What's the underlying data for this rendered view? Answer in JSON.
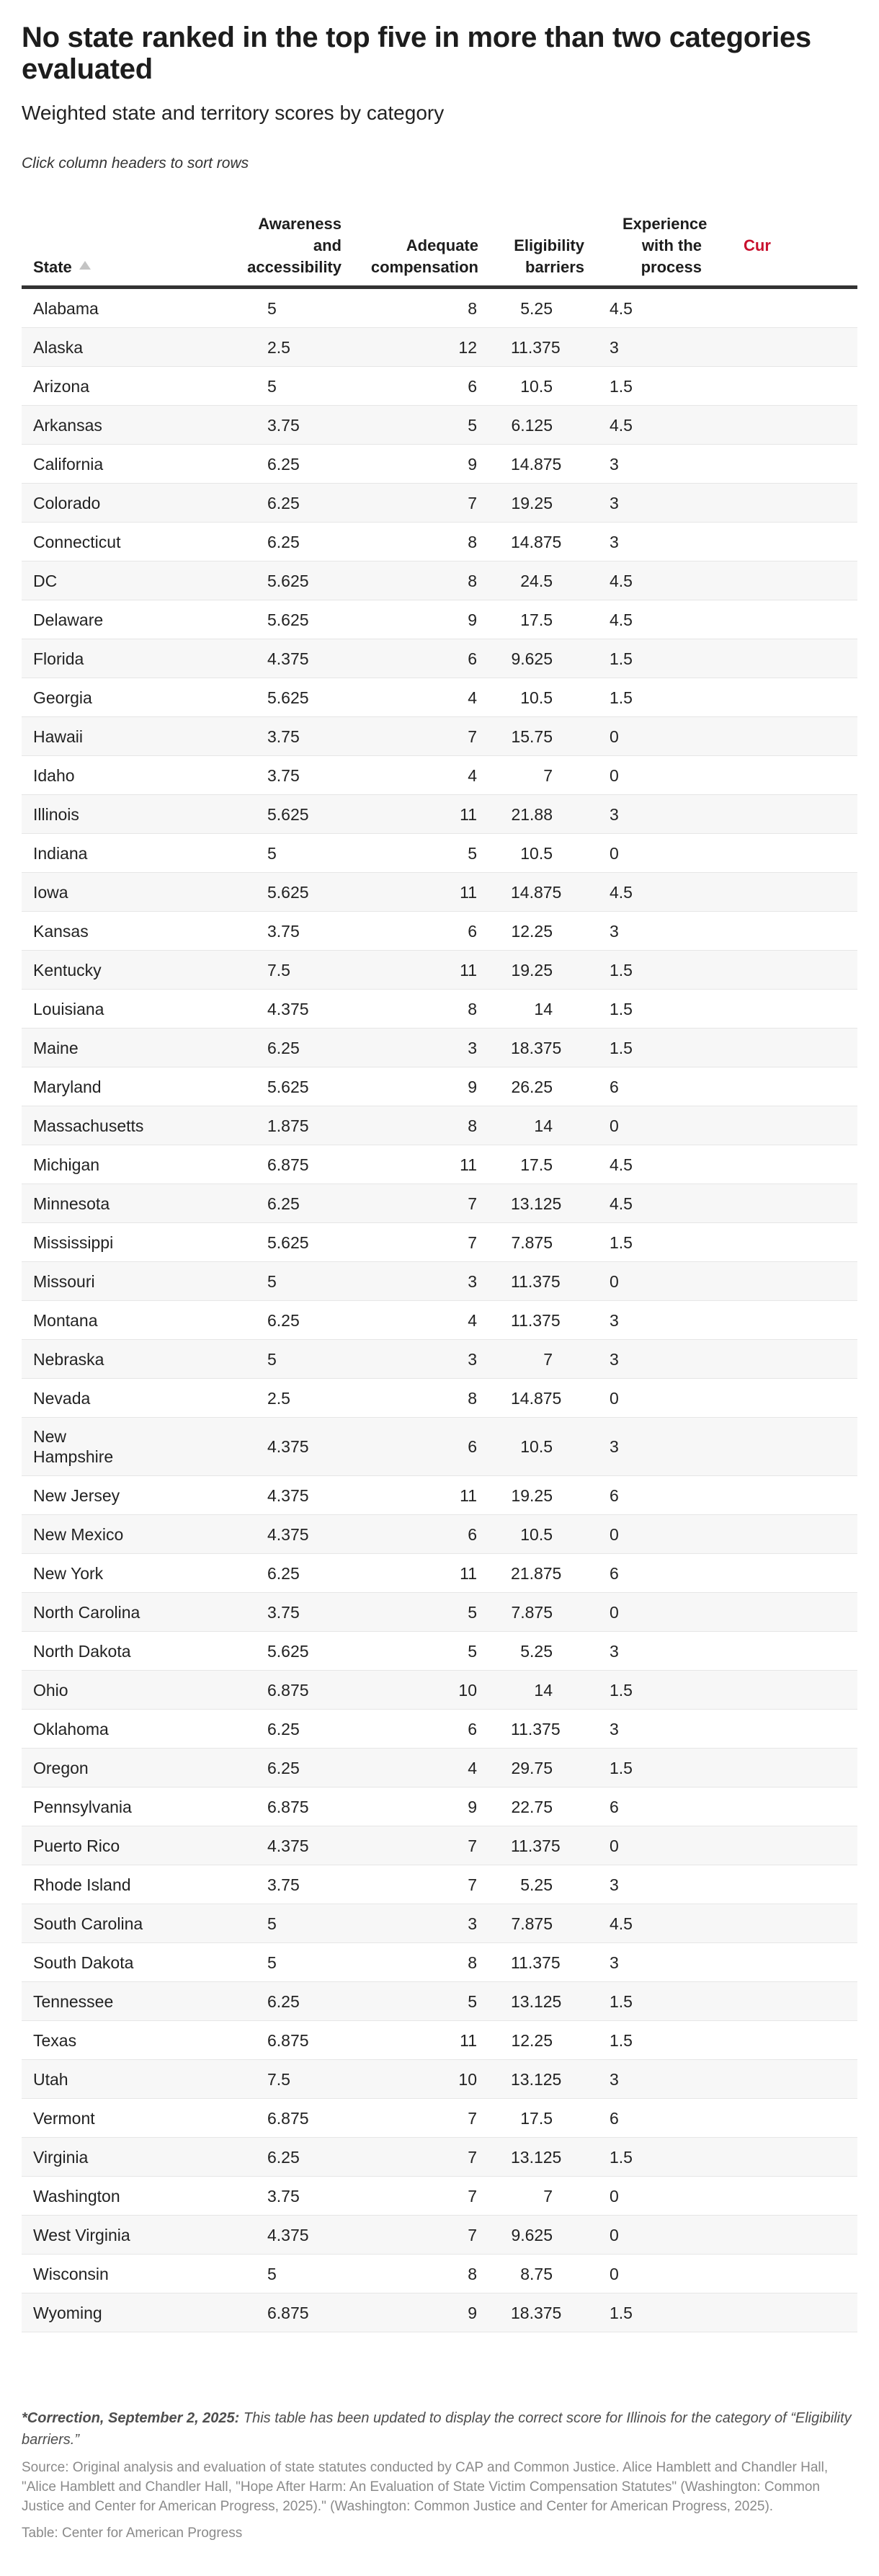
{
  "header": {
    "title": "No state ranked in the top five in more than two categories evaluated",
    "subtitle": "Weighted state and territory scores by category",
    "hint": "Click column headers to sort rows"
  },
  "table": {
    "columns": [
      {
        "key": "state",
        "label": "State",
        "sort": "ascending"
      },
      {
        "key": "awareness",
        "label": "Awareness and accessibility"
      },
      {
        "key": "compensation",
        "label": "Adequate compensation"
      },
      {
        "key": "eligibility",
        "label": "Eligibility barriers"
      },
      {
        "key": "experience",
        "label": "Experience with the process"
      },
      {
        "key": "cut_off",
        "label": "Cur",
        "note": "partially visible, clipped at right edge",
        "color": "#c8102e"
      }
    ],
    "rows": [
      {
        "state": "Alabama",
        "awareness": "5",
        "compensation": "8",
        "eligibility": "5.25",
        "experience": "4.5"
      },
      {
        "state": "Alaska",
        "awareness": "2.5",
        "compensation": "12",
        "eligibility": "11.375",
        "experience": "3"
      },
      {
        "state": "Arizona",
        "awareness": "5",
        "compensation": "6",
        "eligibility": "10.5",
        "experience": "1.5"
      },
      {
        "state": "Arkansas",
        "awareness": "3.75",
        "compensation": "5",
        "eligibility": "6.125",
        "experience": "4.5"
      },
      {
        "state": "California",
        "awareness": "6.25",
        "compensation": "9",
        "eligibility": "14.875",
        "experience": "3"
      },
      {
        "state": "Colorado",
        "awareness": "6.25",
        "compensation": "7",
        "eligibility": "19.25",
        "experience": "3"
      },
      {
        "state": "Connecticut",
        "awareness": "6.25",
        "compensation": "8",
        "eligibility": "14.875",
        "experience": "3"
      },
      {
        "state": "DC",
        "awareness": "5.625",
        "compensation": "8",
        "eligibility": "24.5",
        "experience": "4.5"
      },
      {
        "state": "Delaware",
        "awareness": "5.625",
        "compensation": "9",
        "eligibility": "17.5",
        "experience": "4.5"
      },
      {
        "state": "Florida",
        "awareness": "4.375",
        "compensation": "6",
        "eligibility": "9.625",
        "experience": "1.5"
      },
      {
        "state": "Georgia",
        "awareness": "5.625",
        "compensation": "4",
        "eligibility": "10.5",
        "experience": "1.5"
      },
      {
        "state": "Hawaii",
        "awareness": "3.75",
        "compensation": "7",
        "eligibility": "15.75",
        "experience": "0"
      },
      {
        "state": "Idaho",
        "awareness": "3.75",
        "compensation": "4",
        "eligibility": "7",
        "experience": "0"
      },
      {
        "state": "Illinois",
        "awareness": "5.625",
        "compensation": "11",
        "eligibility": "21.88",
        "experience": "3"
      },
      {
        "state": "Indiana",
        "awareness": "5",
        "compensation": "5",
        "eligibility": "10.5",
        "experience": "0"
      },
      {
        "state": "Iowa",
        "awareness": "5.625",
        "compensation": "11",
        "eligibility": "14.875",
        "experience": "4.5"
      },
      {
        "state": "Kansas",
        "awareness": "3.75",
        "compensation": "6",
        "eligibility": "12.25",
        "experience": "3"
      },
      {
        "state": "Kentucky",
        "awareness": "7.5",
        "compensation": "11",
        "eligibility": "19.25",
        "experience": "1.5"
      },
      {
        "state": "Louisiana",
        "awareness": "4.375",
        "compensation": "8",
        "eligibility": "14",
        "experience": "1.5"
      },
      {
        "state": "Maine",
        "awareness": "6.25",
        "compensation": "3",
        "eligibility": "18.375",
        "experience": "1.5"
      },
      {
        "state": "Maryland",
        "awareness": "5.625",
        "compensation": "9",
        "eligibility": "26.25",
        "experience": "6"
      },
      {
        "state": "Massachusetts",
        "awareness": "1.875",
        "compensation": "8",
        "eligibility": "14",
        "experience": "0"
      },
      {
        "state": "Michigan",
        "awareness": "6.875",
        "compensation": "11",
        "eligibility": "17.5",
        "experience": "4.5"
      },
      {
        "state": "Minnesota",
        "awareness": "6.25",
        "compensation": "7",
        "eligibility": "13.125",
        "experience": "4.5"
      },
      {
        "state": "Mississippi",
        "awareness": "5.625",
        "compensation": "7",
        "eligibility": "7.875",
        "experience": "1.5"
      },
      {
        "state": "Missouri",
        "awareness": "5",
        "compensation": "3",
        "eligibility": "11.375",
        "experience": "0"
      },
      {
        "state": "Montana",
        "awareness": "6.25",
        "compensation": "4",
        "eligibility": "11.375",
        "experience": "3"
      },
      {
        "state": "Nebraska",
        "awareness": "5",
        "compensation": "3",
        "eligibility": "7",
        "experience": "3"
      },
      {
        "state": "Nevada",
        "awareness": "2.5",
        "compensation": "8",
        "eligibility": "14.875",
        "experience": "0"
      },
      {
        "state": "New Hampshire",
        "awareness": "4.375",
        "compensation": "6",
        "eligibility": "10.5",
        "experience": "3"
      },
      {
        "state": "New Jersey",
        "awareness": "4.375",
        "compensation": "11",
        "eligibility": "19.25",
        "experience": "6"
      },
      {
        "state": "New Mexico",
        "awareness": "4.375",
        "compensation": "6",
        "eligibility": "10.5",
        "experience": "0"
      },
      {
        "state": "New York",
        "awareness": "6.25",
        "compensation": "11",
        "eligibility": "21.875",
        "experience": "6"
      },
      {
        "state": "North Carolina",
        "awareness": "3.75",
        "compensation": "5",
        "eligibility": "7.875",
        "experience": "0"
      },
      {
        "state": "North Dakota",
        "awareness": "5.625",
        "compensation": "5",
        "eligibility": "5.25",
        "experience": "3"
      },
      {
        "state": "Ohio",
        "awareness": "6.875",
        "compensation": "10",
        "eligibility": "14",
        "experience": "1.5"
      },
      {
        "state": "Oklahoma",
        "awareness": "6.25",
        "compensation": "6",
        "eligibility": "11.375",
        "experience": "3"
      },
      {
        "state": "Oregon",
        "awareness": "6.25",
        "compensation": "4",
        "eligibility": "29.75",
        "experience": "1.5"
      },
      {
        "state": "Pennsylvania",
        "awareness": "6.875",
        "compensation": "9",
        "eligibility": "22.75",
        "experience": "6"
      },
      {
        "state": "Puerto Rico",
        "awareness": "4.375",
        "compensation": "7",
        "eligibility": "11.375",
        "experience": "0"
      },
      {
        "state": "Rhode Island",
        "awareness": "3.75",
        "compensation": "7",
        "eligibility": "5.25",
        "experience": "3"
      },
      {
        "state": "South Carolina",
        "awareness": "5",
        "compensation": "3",
        "eligibility": "7.875",
        "experience": "4.5"
      },
      {
        "state": "South Dakota",
        "awareness": "5",
        "compensation": "8",
        "eligibility": "11.375",
        "experience": "3"
      },
      {
        "state": "Tennessee",
        "awareness": "6.25",
        "compensation": "5",
        "eligibility": "13.125",
        "experience": "1.5"
      },
      {
        "state": "Texas",
        "awareness": "6.875",
        "compensation": "11",
        "eligibility": "12.25",
        "experience": "1.5"
      },
      {
        "state": "Utah",
        "awareness": "7.5",
        "compensation": "10",
        "eligibility": "13.125",
        "experience": "3"
      },
      {
        "state": "Vermont",
        "awareness": "6.875",
        "compensation": "7",
        "eligibility": "17.5",
        "experience": "6"
      },
      {
        "state": "Virginia",
        "awareness": "6.25",
        "compensation": "7",
        "eligibility": "13.125",
        "experience": "1.5"
      },
      {
        "state": "Washington",
        "awareness": "3.75",
        "compensation": "7",
        "eligibility": "7",
        "experience": "0"
      },
      {
        "state": "West Virginia",
        "awareness": "4.375",
        "compensation": "7",
        "eligibility": "9.625",
        "experience": "0"
      },
      {
        "state": "Wisconsin",
        "awareness": "5",
        "compensation": "8",
        "eligibility": "8.75",
        "experience": "0"
      },
      {
        "state": "Wyoming",
        "awareness": "6.875",
        "compensation": "9",
        "eligibility": "18.375",
        "experience": "1.5"
      }
    ]
  },
  "footer": {
    "correction_label": "*Correction, September 2, 2025:",
    "correction_text": " This table has been updated to display the correct score for Illinois for the category of “Eligibility barriers.”",
    "source": "Source: Original analysis and evaluation of state statutes conducted by CAP and Common Justice. Alice Hamblett and Chandler Hall, \"Alice Hamblett and Chandler Hall, \"Hope After Harm: An Evaluation of State Victim Compensation Statutes\" (Washington: Common Justice and Center for American Progress, 2025).\" (Washington: Common Justice and Center for American Progress, 2025).",
    "credit": "Table: Center for American Progress"
  },
  "colors": {
    "text": "#1d1d1d",
    "header_rule": "#333333",
    "row_stripe": "#f7f7f7",
    "row_border": "#e6e6e6",
    "accent_header": "#c8102e",
    "note_text": "#4d4d4d",
    "source_text": "#8a8a8a",
    "sort_arrow": "#c4c4c4"
  }
}
